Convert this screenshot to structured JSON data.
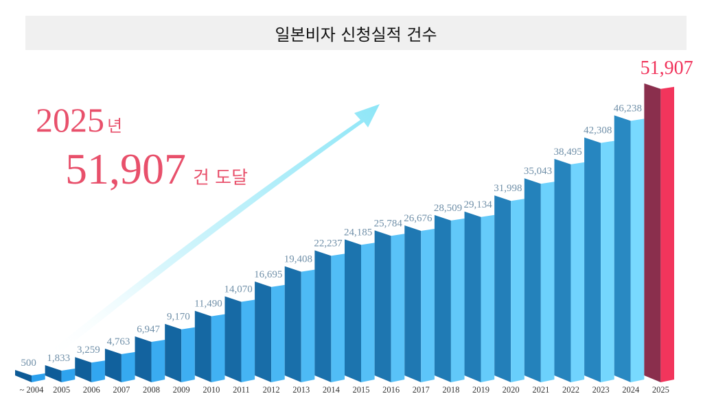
{
  "header": {
    "title": "일본비자 신청실적 건수"
  },
  "callout": {
    "year": "2025",
    "year_suffix": "년",
    "count": "51,907",
    "count_suffix": "건 도달"
  },
  "colors": {
    "highlight_front": "#f2355c",
    "highlight_side": "#8a2f4d",
    "callout_text": "#e8506b",
    "arrow": "#9fe8f5"
  },
  "chart_data": {
    "type": "bar",
    "title": "일본비자 신청실적 건수",
    "xlabel": "",
    "ylabel": "",
    "categories": [
      "~ 2004",
      "2005",
      "2006",
      "2007",
      "2008",
      "2009",
      "2010",
      "2011",
      "2012",
      "2013",
      "2014",
      "2015",
      "2016",
      "2017",
      "2018",
      "2019",
      "2020",
      "2021",
      "2022",
      "2023",
      "2024",
      "2025"
    ],
    "values": [
      500,
      1833,
      3259,
      4763,
      6947,
      9170,
      11490,
      14070,
      16695,
      19408,
      22237,
      24185,
      25784,
      26676,
      28509,
      29134,
      31998,
      35043,
      38495,
      42308,
      46238,
      51907
    ],
    "value_labels": [
      "500",
      "1,833",
      "3,259",
      "4,763",
      "6,947",
      "9,170",
      "11,490",
      "14,070",
      "16,695",
      "19,408",
      "22,237",
      "24,185",
      "25,784",
      "26,676",
      "28,509",
      "29,134",
      "31,998",
      "35,043",
      "38,495",
      "42,308",
      "46,238",
      "51,907"
    ],
    "highlight_category": "2025",
    "ylim": [
      0,
      52000
    ],
    "grid": false,
    "legend": "none"
  }
}
